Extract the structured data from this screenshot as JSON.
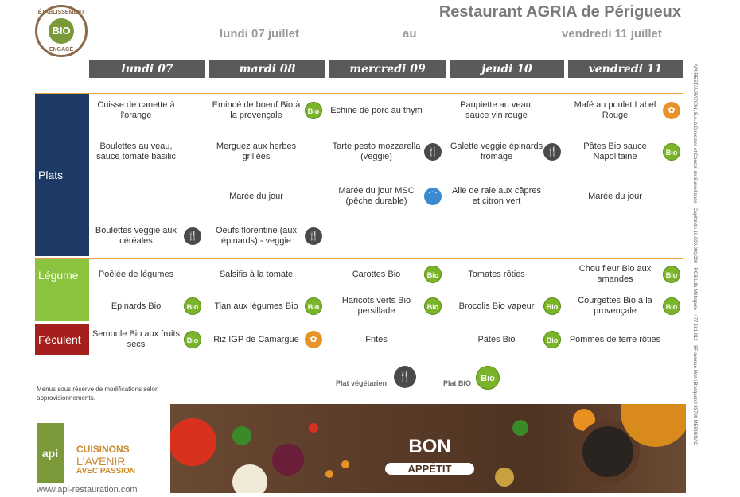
{
  "header": {
    "seal_top": "ÉTABLISSEMENT",
    "seal_center": "BIO",
    "seal_bottom": "ENGAGÉ",
    "title": "Restaurant AGRIA de Périgueux",
    "date_from": "lundi 07 juillet",
    "date_sep": "au",
    "date_to": "vendredi 11 juillet"
  },
  "days": [
    "lundi 07",
    "mardi 08",
    "mercredi 09",
    "jeudi 10",
    "vendredi 11"
  ],
  "categories": {
    "plats": "Plats",
    "legume": "Légume",
    "feculent": "Féculent"
  },
  "menu": {
    "plats_row1": [
      "Cuisse de canette à l'orange",
      "Emincé de boeuf Bio à la provençale",
      "Echine de porc au thym",
      "Paupiette au veau, sauce vin rouge",
      "Mafé au poulet Label Rouge"
    ],
    "plats_row2": [
      "Boulettes au veau, sauce tomate basilic",
      "Merguez aux herbes grillées",
      "Tarte pesto mozzarella (veggie)",
      "Galette veggie épinards fromage",
      "Pâtes Bio sauce Napolitaine"
    ],
    "plats_row3": [
      "",
      "Marée du jour",
      "Marée du jour MSC (pêche durable)",
      "Aile de raie aux câpres et citron vert",
      "Marée du jour"
    ],
    "plats_row4": [
      "Boulettes veggie aux céréales",
      "Oeufs florentine (aux épinards) - veggie",
      "",
      "",
      ""
    ],
    "legume_row1": [
      "Poêlée de légumes",
      "Salsifis à la tomate",
      "Carottes Bio",
      "Tomates rôties",
      "Chou fleur Bio aux amandes"
    ],
    "legume_row2": [
      "Epinards Bio",
      "Tian aux légumes Bio",
      "Haricots verts Bio persillade",
      "Brocolis Bio vapeur",
      "Courgettes Bio à la provençale"
    ],
    "feculent_row1": [
      "Semoule Bio aux fruits secs",
      "Riz IGP de Camargue",
      "Frites",
      "Pâtes Bio",
      "Pommes de terre rôties"
    ]
  },
  "badges": {
    "bio": "Bio",
    "veg": "🍴",
    "label": "✿",
    "msc": "⌒"
  },
  "notes": {
    "disclaimer": "Menus sous réserve de modifications selon approvisionnements.",
    "legend_veg": "Plat végétarien",
    "legend_bio": "Plat BIO",
    "legend_bio_badge": "Bio"
  },
  "footer": {
    "bon": "BON",
    "appetit": "APPÉTIT",
    "api": "api",
    "slogan1": "CUISINONS",
    "slogan2": "L'AVENIR",
    "slogan3": "AVEC PASSION",
    "website": "www.api-restauration.com",
    "legal": "API RESTAURATION, S.A. à Directoire et Conseil de Surveillance - Capital de 10.000.000,00€ - RCS Lille Métropole - 477 181 013 - SF avenue Henri Becquerel 33700 MERIGNAC"
  },
  "colors": {
    "plats": "#1c3a63",
    "legume": "#8ac43f",
    "feculent": "#a5201c",
    "dayhead": "#5a5a5a",
    "bio": "#7ab42a"
  }
}
